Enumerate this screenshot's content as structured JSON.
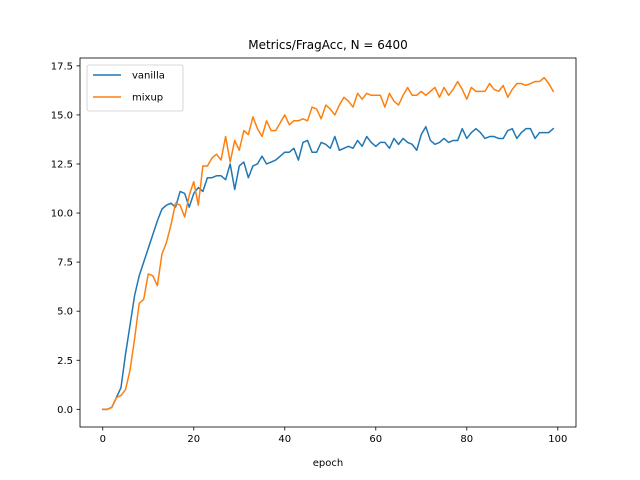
{
  "chart_data": {
    "type": "line",
    "title": "Metrics/FragAcc, N = 6400",
    "xlabel": "epoch",
    "ylabel": "",
    "xlim": [
      -5,
      104
    ],
    "ylim": [
      -0.9,
      17.9
    ],
    "xticks": [
      0,
      20,
      40,
      60,
      80,
      100
    ],
    "yticks": [
      0.0,
      2.5,
      5.0,
      7.5,
      10.0,
      12.5,
      15.0,
      17.5
    ],
    "ytick_labels": [
      "0.0",
      "2.5",
      "5.0",
      "7.5",
      "10.0",
      "12.5",
      "15.0",
      "17.5"
    ],
    "grid": false,
    "legend_position": "top-left",
    "x": [
      0,
      1,
      2,
      3,
      4,
      5,
      6,
      7,
      8,
      9,
      10,
      11,
      12,
      13,
      14,
      15,
      16,
      17,
      18,
      19,
      20,
      21,
      22,
      23,
      24,
      25,
      26,
      27,
      28,
      29,
      30,
      31,
      32,
      33,
      34,
      35,
      36,
      37,
      38,
      39,
      40,
      41,
      42,
      43,
      44,
      45,
      46,
      47,
      48,
      49,
      50,
      51,
      52,
      53,
      54,
      55,
      56,
      57,
      58,
      59,
      60,
      61,
      62,
      63,
      64,
      65,
      66,
      67,
      68,
      69,
      70,
      71,
      72,
      73,
      74,
      75,
      76,
      77,
      78,
      79,
      80,
      81,
      82,
      83,
      84,
      85,
      86,
      87,
      88,
      89,
      90,
      91,
      92,
      93,
      94,
      95,
      96,
      97,
      98,
      99
    ],
    "series": [
      {
        "name": "vanilla",
        "color": "#1f77b4",
        "values": [
          0.0,
          0.0,
          0.1,
          0.6,
          1.1,
          2.8,
          4.3,
          5.8,
          6.8,
          7.5,
          8.2,
          8.9,
          9.6,
          10.2,
          10.4,
          10.5,
          10.3,
          11.1,
          11.0,
          10.3,
          11.0,
          11.3,
          11.1,
          11.8,
          11.8,
          11.9,
          11.9,
          11.7,
          12.5,
          11.2,
          12.4,
          12.6,
          11.8,
          12.4,
          12.5,
          12.9,
          12.5,
          12.6,
          12.7,
          12.9,
          13.1,
          13.1,
          13.3,
          12.7,
          13.6,
          13.7,
          13.1,
          13.1,
          13.6,
          13.5,
          13.3,
          13.9,
          13.2,
          13.3,
          13.4,
          13.3,
          13.7,
          13.4,
          13.9,
          13.6,
          13.4,
          13.6,
          13.6,
          13.3,
          13.8,
          13.5,
          13.8,
          13.6,
          13.5,
          13.2,
          14.0,
          14.4,
          13.7,
          13.5,
          13.6,
          13.8,
          13.6,
          13.7,
          13.7,
          14.3,
          13.8,
          14.1,
          14.3,
          14.1,
          13.8,
          13.9,
          13.9,
          13.8,
          13.8,
          14.2,
          14.3,
          13.8,
          14.1,
          14.3,
          14.3,
          13.8,
          14.1,
          14.1,
          14.1,
          14.3
        ]
      },
      {
        "name": "mixup",
        "color": "#ff7f0e",
        "values": [
          0.0,
          0.0,
          0.1,
          0.6,
          0.7,
          1.0,
          2.0,
          3.6,
          5.4,
          5.6,
          6.9,
          6.8,
          6.3,
          7.9,
          8.5,
          9.4,
          10.5,
          10.4,
          9.8,
          10.9,
          11.6,
          10.4,
          12.4,
          12.4,
          12.8,
          13.0,
          12.7,
          13.9,
          12.6,
          13.7,
          13.2,
          14.2,
          14.0,
          14.9,
          14.3,
          13.9,
          14.7,
          14.2,
          14.2,
          14.6,
          15.0,
          14.5,
          14.7,
          14.7,
          14.8,
          14.7,
          15.4,
          15.3,
          14.8,
          15.5,
          15.3,
          15.0,
          15.5,
          15.9,
          15.7,
          15.4,
          16.1,
          15.8,
          16.1,
          16.0,
          16.0,
          16.0,
          15.4,
          16.1,
          15.7,
          15.5,
          16.0,
          16.4,
          16.0,
          16.0,
          16.2,
          16.0,
          16.2,
          16.4,
          15.9,
          16.4,
          16.0,
          16.3,
          16.7,
          16.3,
          15.8,
          16.4,
          16.2,
          16.2,
          16.2,
          16.6,
          16.3,
          16.2,
          16.5,
          15.9,
          16.3,
          16.6,
          16.6,
          16.5,
          16.6,
          16.7,
          16.7,
          16.9,
          16.6,
          16.2
        ]
      }
    ]
  }
}
